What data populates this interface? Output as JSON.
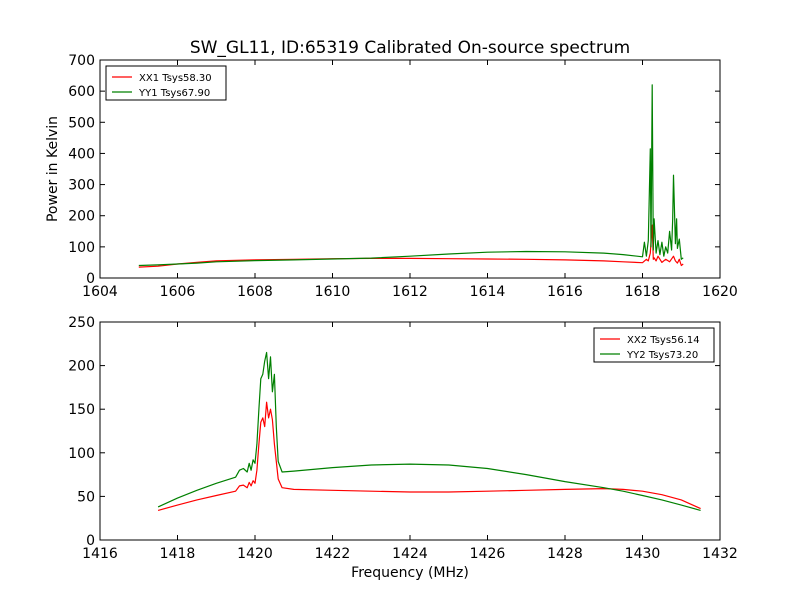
{
  "figure": {
    "title": "SW_GL11, ID:65319 Calibrated On-source spectrum"
  },
  "chart_data": [
    {
      "type": "line",
      "title": "SW_GL11, ID:65319 Calibrated On-source spectrum",
      "xlabel": "",
      "ylabel": "Power in Kelvin",
      "xlim": [
        1604,
        1620
      ],
      "ylim": [
        0,
        700
      ],
      "xticks": [
        1604,
        1606,
        1608,
        1610,
        1612,
        1614,
        1616,
        1618,
        1620
      ],
      "yticks": [
        0,
        100,
        200,
        300,
        400,
        500,
        600,
        700
      ],
      "grid": false,
      "legend_position": "top-left",
      "series": [
        {
          "name": "XX1 Tsys58.30",
          "color": "#ff0000",
          "x": [
            1605.0,
            1605.5,
            1606.0,
            1606.5,
            1607.0,
            1608.0,
            1609.0,
            1610.0,
            1611.0,
            1612.0,
            1613.0,
            1614.0,
            1615.0,
            1616.0,
            1617.0,
            1617.5,
            1618.0,
            1618.1,
            1618.15,
            1618.2,
            1618.25,
            1618.28,
            1618.3,
            1618.35,
            1618.4,
            1618.5,
            1618.6,
            1618.7,
            1618.8,
            1618.85,
            1618.9,
            1618.95,
            1619.0,
            1619.05
          ],
          "y": [
            35,
            38,
            45,
            50,
            55,
            58,
            60,
            62,
            63,
            63,
            62,
            61,
            60,
            58,
            55,
            52,
            49,
            60,
            55,
            80,
            170,
            60,
            65,
            55,
            70,
            50,
            60,
            52,
            70,
            55,
            48,
            60,
            40,
            45
          ]
        },
        {
          "name": "YY1 Tsys67.90",
          "color": "#008000",
          "x": [
            1605.0,
            1605.5,
            1606.0,
            1606.5,
            1607.0,
            1608.0,
            1609.0,
            1610.0,
            1611.0,
            1612.0,
            1613.0,
            1614.0,
            1615.0,
            1616.0,
            1617.0,
            1617.5,
            1618.0,
            1618.05,
            1618.1,
            1618.15,
            1618.2,
            1618.22,
            1618.25,
            1618.28,
            1618.3,
            1618.35,
            1618.4,
            1618.45,
            1618.5,
            1618.55,
            1618.6,
            1618.65,
            1618.7,
            1618.75,
            1618.78,
            1618.8,
            1618.85,
            1618.88,
            1618.9,
            1618.95,
            1619.0,
            1619.05
          ],
          "y": [
            40,
            42,
            45,
            48,
            52,
            56,
            58,
            61,
            64,
            70,
            77,
            83,
            85,
            84,
            80,
            75,
            68,
            115,
            70,
            120,
            415,
            100,
            620,
            90,
            190,
            80,
            120,
            75,
            115,
            70,
            100,
            80,
            150,
            90,
            190,
            330,
            110,
            190,
            95,
            125,
            60,
            65
          ]
        }
      ]
    },
    {
      "type": "line",
      "title": "",
      "xlabel": "Frequency (MHz)",
      "ylabel": "",
      "xlim": [
        1416,
        1432
      ],
      "ylim": [
        0,
        250
      ],
      "xticks": [
        1416,
        1418,
        1420,
        1422,
        1424,
        1426,
        1428,
        1430,
        1432
      ],
      "yticks": [
        0,
        50,
        100,
        150,
        200,
        250
      ],
      "grid": false,
      "legend_position": "top-right",
      "series": [
        {
          "name": "XX2 Tsys56.14",
          "color": "#ff0000",
          "x": [
            1417.5,
            1418.0,
            1418.5,
            1419.0,
            1419.5,
            1419.6,
            1419.7,
            1419.8,
            1419.85,
            1419.9,
            1419.95,
            1420.0,
            1420.05,
            1420.1,
            1420.15,
            1420.2,
            1420.25,
            1420.3,
            1420.35,
            1420.4,
            1420.45,
            1420.5,
            1420.55,
            1420.6,
            1420.7,
            1421.0,
            1422.0,
            1423.0,
            1424.0,
            1425.0,
            1426.0,
            1427.0,
            1428.0,
            1429.0,
            1429.5,
            1430.0,
            1430.5,
            1431.0,
            1431.5
          ],
          "y": [
            34,
            40,
            46,
            51,
            56,
            62,
            63,
            60,
            66,
            62,
            68,
            65,
            80,
            110,
            135,
            140,
            130,
            158,
            140,
            150,
            138,
            110,
            90,
            70,
            60,
            58,
            57,
            56,
            55,
            55,
            56,
            57,
            58,
            59,
            58,
            56,
            52,
            46,
            36
          ]
        },
        {
          "name": "YY2 Tsys73.20",
          "color": "#008000",
          "x": [
            1417.5,
            1418.0,
            1418.5,
            1419.0,
            1419.5,
            1419.6,
            1419.7,
            1419.8,
            1419.85,
            1419.9,
            1419.95,
            1420.0,
            1420.05,
            1420.1,
            1420.15,
            1420.2,
            1420.25,
            1420.3,
            1420.35,
            1420.4,
            1420.45,
            1420.5,
            1420.55,
            1420.6,
            1420.7,
            1421.0,
            1422.0,
            1423.0,
            1424.0,
            1425.0,
            1426.0,
            1427.0,
            1428.0,
            1429.0,
            1429.5,
            1430.0,
            1430.5,
            1431.0,
            1431.5
          ],
          "y": [
            38,
            48,
            57,
            65,
            72,
            80,
            82,
            78,
            88,
            80,
            92,
            88,
            110,
            150,
            185,
            190,
            205,
            215,
            185,
            210,
            170,
            190,
            130,
            90,
            78,
            79,
            83,
            86,
            87,
            86,
            82,
            75,
            67,
            60,
            56,
            51,
            46,
            40,
            34
          ]
        }
      ]
    }
  ]
}
